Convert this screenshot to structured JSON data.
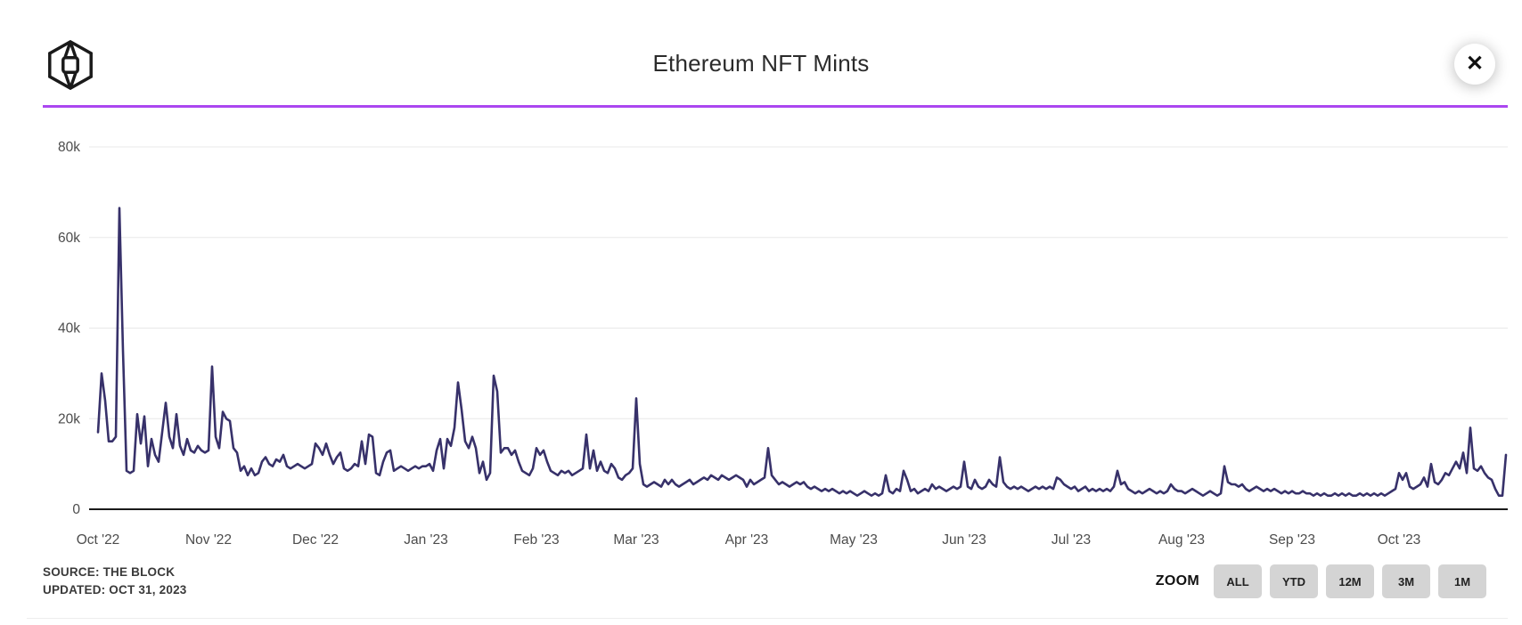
{
  "header": {
    "title": "Ethereum NFT Mints",
    "close_label": "✕",
    "divider_color": "#ab47f0",
    "logo_name": "the-block-logo"
  },
  "footer": {
    "source_line1": "SOURCE: THE BLOCK",
    "source_line2": "UPDATED: OCT 31, 2023",
    "zoom_label": "ZOOM",
    "zoom_buttons": [
      "ALL",
      "YTD",
      "12M",
      "3M",
      "1M"
    ]
  },
  "chart_data": {
    "type": "line",
    "title": "Ethereum NFT Mints",
    "series_name": "Ethereum NFT Mints",
    "line_color": "#37316a",
    "grid_color": "#e8e8e8",
    "axis_color": "#1a1a1a",
    "tick_label_color": "#4c4c4c",
    "grid_on": true,
    "legend": "none",
    "ylim_thousands": [
      0,
      80
    ],
    "yticks": [
      {
        "value_thousands": 0,
        "label": "0"
      },
      {
        "value_thousands": 20,
        "label": "20k"
      },
      {
        "value_thousands": 40,
        "label": "40k"
      },
      {
        "value_thousands": 60,
        "label": "60k"
      },
      {
        "value_thousands": 80,
        "label": "80k"
      }
    ],
    "x_months": [
      {
        "label": "Oct '22",
        "day_index": 0
      },
      {
        "label": "Nov '22",
        "day_index": 31
      },
      {
        "label": "Dec '22",
        "day_index": 61
      },
      {
        "label": "Jan '23",
        "day_index": 92
      },
      {
        "label": "Feb '23",
        "day_index": 123
      },
      {
        "label": "Mar '23",
        "day_index": 151
      },
      {
        "label": "Apr '23",
        "day_index": 182
      },
      {
        "label": "May '23",
        "day_index": 212
      },
      {
        "label": "Jun '23",
        "day_index": 243
      },
      {
        "label": "Jul '23",
        "day_index": 273
      },
      {
        "label": "Aug '23",
        "day_index": 304
      },
      {
        "label": "Sep '23",
        "day_index": 335
      },
      {
        "label": "Oct '23",
        "day_index": 365
      }
    ],
    "values_unit": "thousands_of_mints_per_day",
    "values_thousands": [
      17,
      30,
      24,
      15,
      15,
      16,
      66.5,
      35,
      8.5,
      8,
      8.5,
      21,
      14.5,
      20.5,
      9.5,
      15.5,
      12,
      10.5,
      17,
      23.5,
      16,
      13.5,
      21,
      14,
      12,
      15.5,
      13,
      12.5,
      14,
      13,
      12.5,
      13,
      31.5,
      16,
      13.5,
      21.5,
      20,
      19.5,
      13.5,
      12.5,
      8.5,
      9.5,
      7.5,
      9,
      7.5,
      8,
      10.5,
      11.5,
      10,
      9.5,
      11,
      10.5,
      12,
      9.5,
      9,
      9.5,
      10,
      9.5,
      9,
      9.5,
      10,
      14.5,
      13.5,
      12,
      14.5,
      12,
      10,
      11.5,
      12.5,
      9,
      8.5,
      9,
      10,
      9.5,
      15,
      10,
      16.5,
      16,
      8,
      7.5,
      10.5,
      12.5,
      13,
      8.5,
      9,
      9.5,
      9,
      8.5,
      9,
      9.5,
      9,
      9.5,
      9.5,
      10,
      8.5,
      13,
      15.5,
      9,
      15.5,
      14,
      18,
      28,
      22,
      15,
      13.5,
      16,
      13.5,
      8,
      10.5,
      6.5,
      8,
      29.5,
      26,
      12.5,
      13.5,
      13.5,
      12,
      13,
      10.5,
      8.5,
      8,
      7.5,
      9,
      13.5,
      12,
      13,
      10.5,
      8.5,
      8,
      7.5,
      8.5,
      8,
      8.5,
      7.5,
      8,
      8.5,
      9,
      16.5,
      9,
      13,
      8.5,
      10.5,
      8.5,
      8,
      10,
      9,
      7,
      6.5,
      7.5,
      8,
      9,
      24.5,
      10,
      5.5,
      5,
      5.5,
      6,
      5.5,
      5,
      6.5,
      5.5,
      6.5,
      5.5,
      5,
      5.5,
      6,
      6.5,
      5.5,
      6,
      6.5,
      7,
      6.5,
      7.5,
      7,
      6.5,
      7.5,
      7,
      6.5,
      7,
      7.5,
      7,
      6.5,
      5,
      6.5,
      5.5,
      6,
      6.5,
      7,
      13.5,
      7.5,
      6.5,
      5.5,
      6,
      5.5,
      5,
      5.5,
      6,
      5.5,
      6,
      5,
      4.5,
      5,
      4.5,
      4,
      4.5,
      4,
      4.5,
      4,
      3.5,
      4,
      3.5,
      4,
      3.5,
      3,
      3.5,
      4,
      3.5,
      3,
      3.5,
      3,
      3.5,
      7.5,
      4,
      3.5,
      4.5,
      4,
      8.5,
      6.5,
      4,
      4.5,
      3.5,
      4,
      4.5,
      4,
      5.5,
      4.5,
      5,
      4.5,
      4,
      4.5,
      5,
      4.5,
      5,
      10.5,
      5,
      4.5,
      6.5,
      5,
      4.5,
      5,
      6.5,
      5.5,
      5,
      11.5,
      6,
      5,
      4.5,
      5,
      4.5,
      5,
      4.5,
      4,
      4.5,
      5,
      4.5,
      5,
      4.5,
      5,
      4.5,
      7,
      6.5,
      5.5,
      5,
      4.5,
      5,
      4,
      4.5,
      5,
      4,
      4.5,
      4,
      4.5,
      4,
      4.5,
      4,
      5,
      8.5,
      5.5,
      6,
      4.5,
      4,
      3.5,
      4,
      3.5,
      4,
      4.5,
      4,
      3.5,
      4,
      3.5,
      4,
      5.5,
      4.5,
      4,
      4,
      3.5,
      4,
      4.5,
      4,
      3.5,
      3,
      3.5,
      4,
      3.5,
      3,
      3.5,
      9.5,
      6,
      5.5,
      5.5,
      5,
      5.5,
      4.5,
      4,
      4.5,
      5,
      4.5,
      4,
      4.5,
      4,
      4.5,
      4,
      3.5,
      4,
      3.5,
      4,
      3.5,
      3.5,
      4,
      3.5,
      3.5,
      3,
      3.5,
      3,
      3.5,
      3,
      3,
      3.5,
      3,
      3.5,
      3,
      3.5,
      3,
      3,
      3.5,
      3,
      3.5,
      3,
      3.5,
      3,
      3.5,
      3,
      3.5,
      4,
      4.5,
      8,
      6.5,
      8,
      5,
      4.5,
      5,
      5.5,
      7,
      5,
      10,
      6,
      5.5,
      6.5,
      8,
      7.5,
      9,
      10.5,
      9,
      12.5,
      8,
      18,
      9,
      8.5,
      9.5,
      8,
      7,
      6.5,
      4.5,
      3,
      3,
      12
    ]
  }
}
